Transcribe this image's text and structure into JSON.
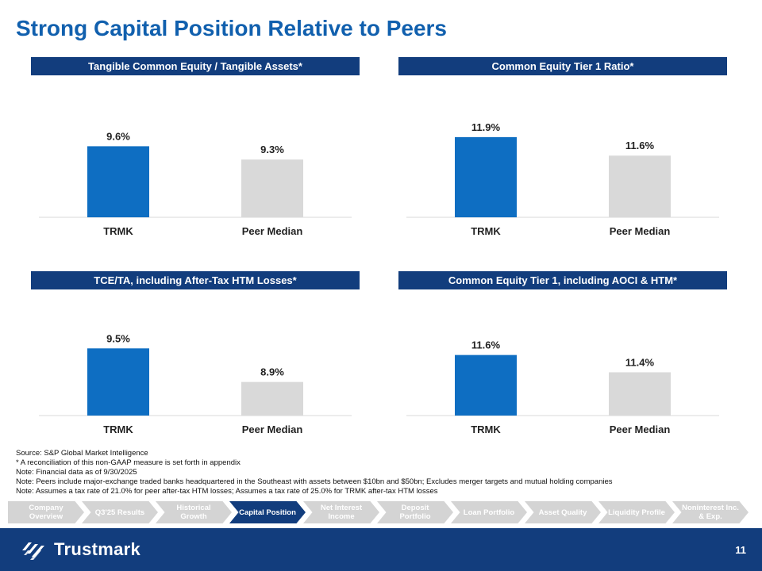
{
  "slide": {
    "title": "Strong Capital Position Relative to Peers",
    "page_number": "11"
  },
  "colors": {
    "primary": "#1160ae",
    "header": "#123d7d",
    "bar_trmk": "#0e6ec2",
    "bar_peer": "#d9d9d9"
  },
  "chart_data": [
    {
      "type": "bar",
      "title": "Tangible Common Equity / Tangible Assets*",
      "categories": [
        "TRMK",
        "Peer Median"
      ],
      "values": [
        9.6,
        9.3
      ],
      "labels": [
        "9.6%",
        "9.3%"
      ],
      "ylim": [
        8.0,
        10.5
      ],
      "xlabel": "",
      "ylabel": ""
    },
    {
      "type": "bar",
      "title": "Common Equity Tier 1 Ratio*",
      "categories": [
        "TRMK",
        "Peer Median"
      ],
      "values": [
        11.9,
        11.6
      ],
      "labels": [
        "11.9%",
        "11.6%"
      ],
      "ylim": [
        10.6,
        12.4
      ],
      "xlabel": "",
      "ylabel": ""
    },
    {
      "type": "bar",
      "title": "TCE/TA, including After-Tax HTM Losses*",
      "categories": [
        "TRMK",
        "Peer Median"
      ],
      "values": [
        9.5,
        8.9
      ],
      "labels": [
        "9.5%",
        "8.9%"
      ],
      "ylim": [
        8.3,
        10.0
      ],
      "xlabel": "",
      "ylabel": ""
    },
    {
      "type": "bar",
      "title": "Common Equity Tier 1, including AOCI & HTM*",
      "categories": [
        "TRMK",
        "Peer Median"
      ],
      "values": [
        11.6,
        11.4
      ],
      "labels": [
        "11.6%",
        "11.4%"
      ],
      "ylim": [
        10.9,
        12.0
      ],
      "xlabel": "",
      "ylabel": ""
    }
  ],
  "notes": [
    "Source: S&P Global Market Intelligence",
    "* A reconciliation of this non-GAAP measure is set forth in appendix",
    "Note: Financial data as of 9/30/2025",
    "Note: Peers include major-exchange traded banks headquartered in the Southeast with assets between $10bn and $50bn; Excludes merger targets and mutual holding companies",
    "Note: Assumes a tax rate of 21.0% for peer after-tax HTM losses; Assumes a tax rate of 25.0% for TRMK after-tax HTM losses"
  ],
  "nav": [
    {
      "label": "Company Overview",
      "active": false
    },
    {
      "label": "Q3'25 Results",
      "active": false
    },
    {
      "label": "Historical Growth",
      "active": false
    },
    {
      "label": "Capital Position",
      "active": true
    },
    {
      "label": "Net Interest Income",
      "active": false
    },
    {
      "label": "Deposit Portfolio",
      "active": false
    },
    {
      "label": "Loan Portfolio",
      "active": false
    },
    {
      "label": "Asset Quality",
      "active": false
    },
    {
      "label": "Liquidity Profile",
      "active": false
    },
    {
      "label": "Noninterest Inc. & Exp.",
      "active": false
    }
  ],
  "footer": {
    "logo_text": "Trustmark",
    "logo_icon": "trustmark-logo-icon"
  }
}
